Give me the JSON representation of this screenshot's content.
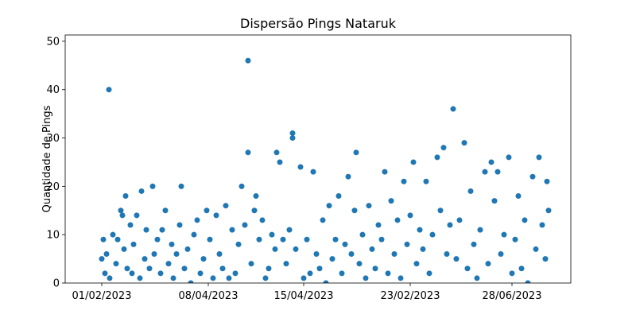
{
  "chart_data": {
    "type": "scatter",
    "title": "Dispersão Pings Nataruk",
    "y_label": "Quantidade de Pings",
    "color": "#1f77b4",
    "x": [
      0,
      1,
      2,
      3,
      4.5,
      5,
      7,
      9,
      10,
      12,
      13,
      14,
      15,
      16,
      18,
      19,
      20,
      22,
      24,
      25,
      27,
      28,
      30,
      32,
      33,
      35,
      37,
      38,
      40,
      42,
      44,
      45,
      47,
      49,
      50,
      52,
      54,
      56,
      58,
      60,
      62,
      64,
      66,
      68,
      70,
      72,
      74,
      76,
      78,
      80,
      82,
      84,
      86,
      88,
      90,
      92,
      92,
      94,
      96,
      97,
      99,
      101,
      103,
      105,
      107,
      109,
      110,
      112,
      114,
      116,
      118,
      120,
      120,
      122,
      125,
      127,
      129,
      131,
      133,
      135,
      137,
      139,
      141,
      143,
      145,
      147,
      149,
      151,
      153,
      155,
      157,
      159,
      160,
      162,
      164,
      166,
      168,
      170,
      172,
      174,
      176,
      178,
      180,
      182,
      184,
      186,
      188,
      190,
      192,
      194,
      196,
      198,
      200,
      202,
      204,
      206,
      208,
      211,
      213,
      215,
      217,
      219,
      221,
      223,
      225,
      228,
      230,
      232,
      234,
      236,
      238,
      241,
      243,
      245,
      247,
      249,
      251,
      253,
      256,
      258,
      260,
      262,
      264,
      266,
      268,
      271,
      273,
      275,
      277,
      279,
      280,
      281
    ],
    "values": [
      5,
      9,
      2,
      6,
      40,
      1,
      10,
      4,
      9,
      15,
      14,
      7,
      18,
      3,
      12,
      2,
      8,
      14,
      1,
      19,
      5,
      11,
      3,
      20,
      6,
      9,
      2,
      11,
      15,
      4,
      8,
      1,
      6,
      12,
      20,
      3,
      7,
      0,
      10,
      13,
      2,
      5,
      15,
      9,
      1,
      14,
      6,
      3,
      16,
      1,
      11,
      2,
      8,
      20,
      12,
      46,
      27,
      4,
      15,
      18,
      9,
      13,
      1,
      3,
      10,
      7,
      27,
      25,
      9,
      4,
      11,
      31,
      30,
      7,
      24,
      1,
      9,
      2,
      23,
      6,
      3,
      13,
      0,
      16,
      5,
      9,
      18,
      2,
      8,
      22,
      6,
      15,
      27,
      4,
      10,
      1,
      16,
      7,
      3,
      12,
      9,
      23,
      2,
      17,
      6,
      13,
      1,
      21,
      8,
      14,
      25,
      4,
      11,
      7,
      21,
      2,
      10,
      26,
      15,
      28,
      6,
      12,
      36,
      5,
      13,
      29,
      3,
      19,
      8,
      1,
      11,
      23,
      4,
      25,
      17,
      23,
      6,
      10,
      26,
      2,
      9,
      18,
      3,
      13,
      0,
      22,
      7,
      26,
      12,
      5,
      21,
      15
    ],
    "xlim": [
      -23,
      295
    ],
    "xticks": [
      {
        "value": 0,
        "label": "01/02/2023"
      },
      {
        "value": 67,
        "label": "08/04/2023"
      },
      {
        "value": 127,
        "label": "15/04/2023"
      },
      {
        "value": 194,
        "label": "23/02/2023"
      },
      {
        "value": 258,
        "label": "28/06/2023"
      }
    ],
    "ylim": [
      0,
      51.3
    ],
    "yticks": [
      0,
      10,
      20,
      30,
      40,
      50
    ]
  }
}
